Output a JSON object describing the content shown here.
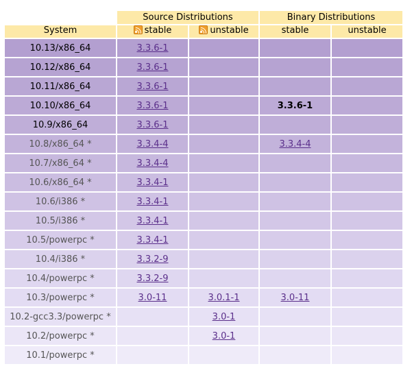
{
  "header": {
    "source_distributions": "Source Distributions",
    "binary_distributions": "Binary Distributions",
    "system": "System",
    "src_stable": "stable",
    "src_unstable": "unstable",
    "bin_stable": "stable",
    "bin_unstable": "unstable"
  },
  "rows": [
    {
      "system": "10.13/x86_64",
      "src_stable": "3.3.6-1",
      "src_unstable": "",
      "bin_stable": "",
      "bin_unstable": "",
      "bg": "#b39fd0",
      "dim": false
    },
    {
      "system": "10.12/x86_64",
      "src_stable": "3.3.6-1",
      "src_unstable": "",
      "bin_stable": "",
      "bin_unstable": "",
      "bg": "#b6a3d2",
      "dim": false
    },
    {
      "system": "10.11/x86_64",
      "src_stable": "3.3.6-1",
      "src_unstable": "",
      "bin_stable": "",
      "bin_unstable": "",
      "bg": "#b9a7d4",
      "dim": false
    },
    {
      "system": "10.10/x86_64",
      "src_stable": "3.3.6-1",
      "src_unstable": "",
      "bin_stable": "3.3.6-1",
      "bin_unstable": "",
      "bg": "#bcaad6",
      "dim": false,
      "bin_stable_bold": true
    },
    {
      "system": "10.9/x86_64",
      "src_stable": "3.3.6-1",
      "src_unstable": "",
      "bin_stable": "",
      "bin_unstable": "",
      "bg": "#bfaed8",
      "dim": false
    },
    {
      "system": "10.8/x86_64 *",
      "src_stable": "3.3.4-4",
      "src_unstable": "",
      "bin_stable": "3.3.4-4",
      "bin_unstable": "",
      "bg": "#c3b3db",
      "dim": true
    },
    {
      "system": "10.7/x86_64 *",
      "src_stable": "3.3.4-4",
      "src_unstable": "",
      "bin_stable": "",
      "bin_unstable": "",
      "bg": "#c7b8de",
      "dim": true
    },
    {
      "system": "10.6/x86_64 *",
      "src_stable": "3.3.4-1",
      "src_unstable": "",
      "bin_stable": "",
      "bin_unstable": "",
      "bg": "#cbbde1",
      "dim": true
    },
    {
      "system": "10.6/i386 *",
      "src_stable": "3.3.4-1",
      "src_unstable": "",
      "bin_stable": "",
      "bin_unstable": "",
      "bg": "#cfc2e4",
      "dim": true
    },
    {
      "system": "10.5/i386 *",
      "src_stable": "3.3.4-1",
      "src_unstable": "",
      "bin_stable": "",
      "bin_unstable": "",
      "bg": "#d3c7e7",
      "dim": true
    },
    {
      "system": "10.5/powerpc *",
      "src_stable": "3.3.4-1",
      "src_unstable": "",
      "bin_stable": "",
      "bin_unstable": "",
      "bg": "#d7ccea",
      "dim": true
    },
    {
      "system": "10.4/i386 *",
      "src_stable": "3.3.2-9",
      "src_unstable": "",
      "bin_stable": "",
      "bin_unstable": "",
      "bg": "#dbd2ed",
      "dim": true
    },
    {
      "system": "10.4/powerpc *",
      "src_stable": "3.3.2-9",
      "src_unstable": "",
      "bin_stable": "",
      "bin_unstable": "",
      "bg": "#dfd7f0",
      "dim": true
    },
    {
      "system": "10.3/powerpc *",
      "src_stable": "3.0-11",
      "src_unstable": "3.0.1-1",
      "bin_stable": "3.0-11",
      "bin_unstable": "",
      "bg": "#e3dcf3",
      "dim": true
    },
    {
      "system": "10.2-gcc3.3/powerpc *",
      "src_stable": "",
      "src_unstable": "3.0-1",
      "bin_stable": "",
      "bin_unstable": "",
      "bg": "#e7e1f5",
      "dim": true
    },
    {
      "system": "10.2/powerpc *",
      "src_stable": "",
      "src_unstable": "3.0-1",
      "bin_stable": "",
      "bin_unstable": "",
      "bg": "#ebe6f7",
      "dim": true
    },
    {
      "system": "10.1/powerpc *",
      "src_stable": "",
      "src_unstable": "",
      "bin_stable": "",
      "bin_unstable": "",
      "bg": "#efebf9",
      "dim": true
    }
  ],
  "colors": {
    "header_bg": "#fde9a8",
    "link": "#5a2e8a"
  },
  "icons": {
    "feed": "rss-feed-icon"
  }
}
